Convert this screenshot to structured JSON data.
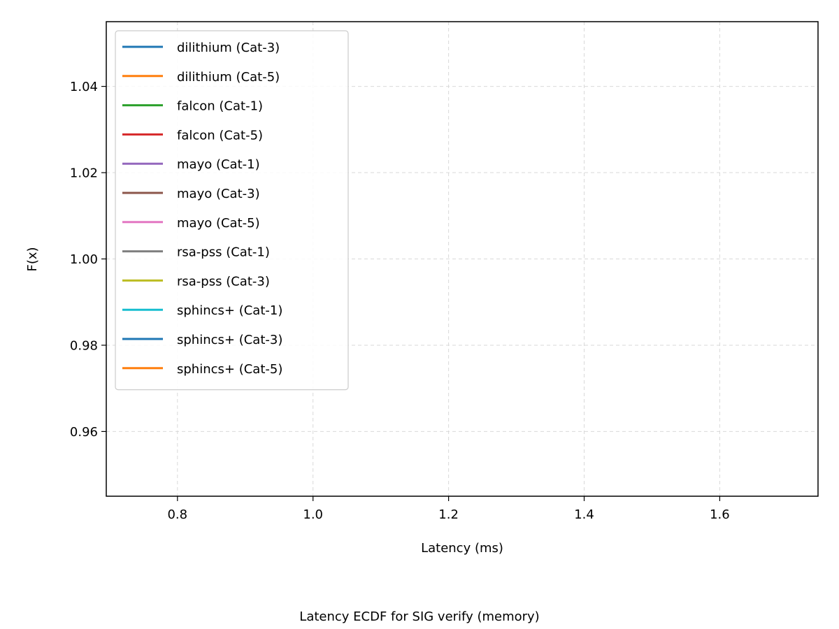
{
  "caption": "Latency ECDF for SIG verify (memory)",
  "chart_data": {
    "type": "line",
    "title": "",
    "xlabel": "Latency (ms)",
    "ylabel": "F(x)",
    "xlim": [
      0.695,
      1.745
    ],
    "ylim": [
      0.945,
      1.055
    ],
    "xticks": [
      "0.8",
      "1.0",
      "1.2",
      "1.4",
      "1.6"
    ],
    "yticks": [
      "0.96",
      "0.98",
      "1.00",
      "1.02",
      "1.04"
    ],
    "grid": true,
    "grid_style": "dashed",
    "legend_position": "upper-left",
    "series": [
      {
        "name": "dilithium (Cat-3)",
        "color": "#1f77b4",
        "x": [],
        "y": []
      },
      {
        "name": "dilithium (Cat-5)",
        "color": "#ff7f0e",
        "x": [],
        "y": []
      },
      {
        "name": "falcon (Cat-1)",
        "color": "#2ca02c",
        "x": [],
        "y": []
      },
      {
        "name": "falcon (Cat-5)",
        "color": "#d62728",
        "x": [],
        "y": []
      },
      {
        "name": "mayo (Cat-1)",
        "color": "#9467bd",
        "x": [],
        "y": []
      },
      {
        "name": "mayo (Cat-3)",
        "color": "#8c564b",
        "x": [],
        "y": []
      },
      {
        "name": "mayo (Cat-5)",
        "color": "#e377c2",
        "x": [],
        "y": []
      },
      {
        "name": "rsa-pss (Cat-1)",
        "color": "#7f7f7f",
        "x": [],
        "y": []
      },
      {
        "name": "rsa-pss (Cat-3)",
        "color": "#bcbd22",
        "x": [],
        "y": []
      },
      {
        "name": "sphincs+ (Cat-1)",
        "color": "#17becf",
        "x": [],
        "y": []
      },
      {
        "name": "sphincs+ (Cat-3)",
        "color": "#1f77b4",
        "x": [],
        "y": []
      },
      {
        "name": "sphincs+ (Cat-5)",
        "color": "#ff7f0e",
        "x": [],
        "y": []
      }
    ]
  }
}
